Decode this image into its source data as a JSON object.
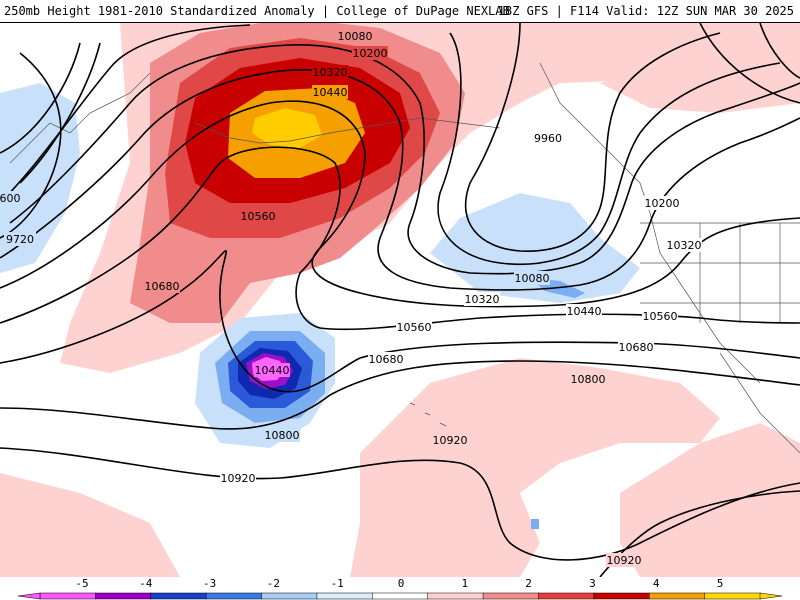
{
  "header": {
    "left_title": "250mb Height 1981-2010 Standardized Anomaly | College of DuPage NEXLAB",
    "right_title": "18Z GFS | F114 Valid: 12Z SUN MAR 30 2025"
  },
  "contour_labels": [
    {
      "text": "10080"
    },
    {
      "text": "10200"
    },
    {
      "text": "10320"
    },
    {
      "text": "10440"
    },
    {
      "text": "10560"
    },
    {
      "text": "10680"
    },
    {
      "text": "600"
    },
    {
      "text": "9720"
    },
    {
      "text": "9960"
    },
    {
      "text": "10200"
    },
    {
      "text": "10320"
    },
    {
      "text": "10080"
    },
    {
      "text": "10320"
    },
    {
      "text": "10440"
    },
    {
      "text": "10560"
    },
    {
      "text": "10560"
    },
    {
      "text": "10680"
    },
    {
      "text": "10680"
    },
    {
      "text": "10800"
    },
    {
      "text": "10440"
    },
    {
      "text": "10800"
    },
    {
      "text": "10920"
    },
    {
      "text": "10920"
    },
    {
      "text": "10920"
    }
  ],
  "colorbar": {
    "labels": [
      "-5",
      "-4",
      "-3",
      "-2",
      "-1",
      "0",
      "1",
      "2",
      "3",
      "4",
      "5"
    ],
    "colors": [
      "#ff55ff",
      "#9b00c8",
      "#1b40c8",
      "#3c78e6",
      "#a8cdf5",
      "#dcecfc",
      "#ffffff",
      "#ffd0d0",
      "#f58c8c",
      "#e63c3c",
      "#c80000",
      "#f5a000",
      "#ffd700"
    ]
  },
  "anomaly_colors": {
    "pos_1": "#ffd2d2",
    "pos_2": "#f08c8c",
    "pos_3": "#e04848",
    "pos_4": "#c80000",
    "pos_5": "#f5a000",
    "pos_6": "#ffcc00",
    "neg_1": "#c8e0fa",
    "neg_2": "#7aaef0",
    "neg_3": "#2a5ad8",
    "neg_4": "#1028b0",
    "neg_5": "#9a10c8",
    "neg_6": "#ff66ff"
  }
}
